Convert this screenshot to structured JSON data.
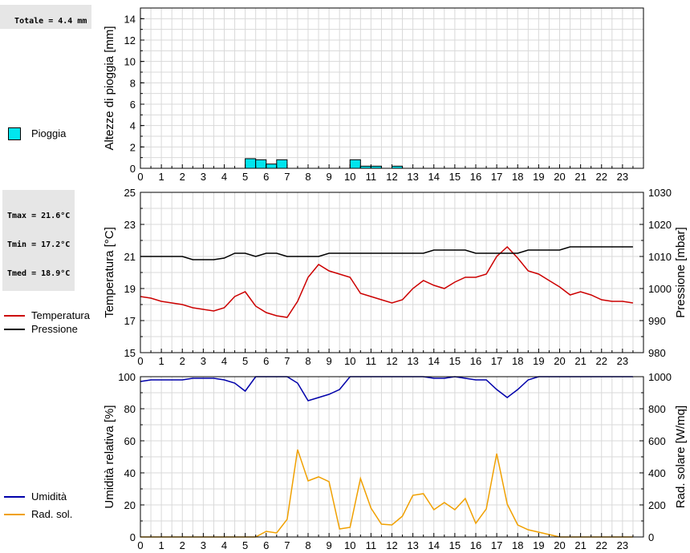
{
  "summaries": {
    "rain_total": "Totale = 4.4 mm",
    "temp_lines": [
      "Tmax = 21.6°C",
      "Tmin = 17.2°C",
      "Tmed = 18.9°C"
    ]
  },
  "legends": {
    "rain": [
      {
        "label": "Pioggia",
        "color": "#00e5ee"
      }
    ],
    "temp": [
      {
        "label": "Temperatura",
        "color": "#cc0000"
      },
      {
        "label": "Pressione",
        "color": "#000000"
      }
    ],
    "hum": [
      {
        "label": "Umidità",
        "color": "#0000aa"
      },
      {
        "label": "Rad. sol.",
        "color": "#f0a000"
      }
    ]
  },
  "chart_data": [
    {
      "type": "bar",
      "ylabel": "Altezze di pioggia [mm]",
      "xlim": [
        0,
        24
      ],
      "ylim": [
        0,
        15
      ],
      "yticks": [
        0,
        2,
        4,
        6,
        8,
        10,
        12,
        14
      ],
      "xticks": [
        0,
        1,
        2,
        3,
        4,
        5,
        6,
        7,
        8,
        9,
        10,
        11,
        12,
        13,
        14,
        15,
        16,
        17,
        18,
        19,
        20,
        21,
        22,
        23
      ],
      "bar_width": 0.5,
      "bars": [
        {
          "x": 5.0,
          "value": 0.9
        },
        {
          "x": 5.5,
          "value": 0.8
        },
        {
          "x": 6.0,
          "value": 0.4
        },
        {
          "x": 6.5,
          "value": 0.8
        },
        {
          "x": 10.0,
          "value": 0.8
        },
        {
          "x": 10.5,
          "value": 0.2
        },
        {
          "x": 11.0,
          "value": 0.2
        },
        {
          "x": 12.0,
          "value": 0.2
        }
      ],
      "color": "#00e5ee",
      "grid": true
    },
    {
      "type": "line",
      "ylabel": "Temperatura [°C]",
      "y2label": "Pressione [mbar]",
      "xlim": [
        0,
        24
      ],
      "ylim": [
        15,
        25
      ],
      "yticks": [
        15,
        17,
        19,
        21,
        23,
        25
      ],
      "y2lim": [
        980,
        1030
      ],
      "y2ticks": [
        980,
        990,
        1000,
        1010,
        1020,
        1030
      ],
      "xticks": [
        0,
        1,
        2,
        3,
        4,
        5,
        6,
        7,
        8,
        9,
        10,
        11,
        12,
        13,
        14,
        15,
        16,
        17,
        18,
        19,
        20,
        21,
        22,
        23
      ],
      "grid": true,
      "series": [
        {
          "name": "Temperatura",
          "axis": "left",
          "color": "#cc0000",
          "x": [
            0,
            0.5,
            1,
            1.5,
            2,
            2.5,
            3,
            3.5,
            4,
            4.5,
            5,
            5.5,
            6,
            6.5,
            7,
            7.5,
            8,
            8.5,
            9,
            9.5,
            10,
            10.5,
            11,
            11.5,
            12,
            12.5,
            13,
            13.5,
            14,
            14.5,
            15,
            15.5,
            16,
            16.5,
            17,
            17.5,
            18,
            18.5,
            19,
            19.5,
            20,
            20.5,
            21,
            21.5,
            22,
            22.5,
            23,
            23.5
          ],
          "y": [
            18.5,
            18.4,
            18.2,
            18.1,
            18.0,
            17.8,
            17.7,
            17.6,
            17.8,
            18.5,
            18.8,
            17.9,
            17.5,
            17.3,
            17.2,
            18.2,
            19.7,
            20.5,
            20.1,
            19.9,
            19.7,
            18.7,
            18.5,
            18.3,
            18.1,
            18.3,
            19.0,
            19.5,
            19.2,
            19.0,
            19.4,
            19.7,
            19.7,
            19.9,
            21.0,
            21.6,
            20.9,
            20.1,
            19.9,
            19.5,
            19.1,
            18.6,
            18.8,
            18.6,
            18.3,
            18.2,
            18.2,
            18.1
          ]
        },
        {
          "name": "Pressione",
          "axis": "right",
          "color": "#000000",
          "x": [
            0,
            0.5,
            1,
            1.5,
            2,
            2.5,
            3,
            3.5,
            4,
            4.5,
            5,
            5.5,
            6,
            6.5,
            7,
            7.5,
            8,
            8.5,
            9,
            9.5,
            10,
            10.5,
            11,
            11.5,
            12,
            12.5,
            13,
            13.5,
            14,
            14.5,
            15,
            15.5,
            16,
            16.5,
            17,
            17.5,
            18,
            18.5,
            19,
            19.5,
            20,
            20.5,
            21,
            21.5,
            22,
            22.5,
            23,
            23.5
          ],
          "y": [
            1010,
            1010,
            1010,
            1010,
            1010,
            1009,
            1009,
            1009,
            1009.5,
            1011,
            1011,
            1010,
            1011,
            1011,
            1010,
            1010,
            1010,
            1010,
            1011,
            1011,
            1011,
            1011,
            1011,
            1011,
            1011,
            1011,
            1011,
            1011,
            1012,
            1012,
            1012,
            1012,
            1011,
            1011,
            1011,
            1011,
            1011,
            1012,
            1012,
            1012,
            1012,
            1013,
            1013,
            1013,
            1013,
            1013,
            1013,
            1013
          ]
        }
      ]
    },
    {
      "type": "line",
      "ylabel": "Umidità relativa [%]",
      "y2label": "Rad. solare [W/mq]",
      "xlim": [
        0,
        24
      ],
      "ylim": [
        0,
        100
      ],
      "yticks": [
        0,
        20,
        40,
        60,
        80,
        100
      ],
      "y2lim": [
        0,
        1000
      ],
      "y2ticks": [
        0,
        200,
        400,
        600,
        800,
        1000
      ],
      "xticks": [
        0,
        1,
        2,
        3,
        4,
        5,
        6,
        7,
        8,
        9,
        10,
        11,
        12,
        13,
        14,
        15,
        16,
        17,
        18,
        19,
        20,
        21,
        22,
        23
      ],
      "grid": true,
      "series": [
        {
          "name": "Umidità",
          "axis": "left",
          "color": "#0000aa",
          "x": [
            0,
            0.5,
            1,
            1.5,
            2,
            2.5,
            3,
            3.5,
            4,
            4.5,
            5,
            5.5,
            6,
            6.5,
            7,
            7.5,
            8,
            8.5,
            9,
            9.5,
            10,
            10.5,
            11,
            11.5,
            12,
            12.5,
            13,
            13.5,
            14,
            14.5,
            15,
            15.5,
            16,
            16.5,
            17,
            17.5,
            18,
            18.5,
            19,
            19.5,
            20,
            20.5,
            21,
            21.5,
            22,
            22.5,
            23,
            23.5
          ],
          "y": [
            97,
            98,
            98,
            98,
            98,
            99,
            99,
            99,
            98,
            96,
            91,
            100,
            100,
            100,
            100,
            96,
            85,
            87,
            89,
            92,
            100,
            100,
            100,
            100,
            100,
            100,
            100,
            100,
            99,
            99,
            100,
            99,
            98,
            98,
            92,
            87,
            92,
            98,
            100,
            100,
            100,
            100,
            100,
            100,
            100,
            100,
            100,
            100
          ]
        },
        {
          "name": "Rad. sol.",
          "axis": "right",
          "color": "#f0a000",
          "x": [
            0,
            0.5,
            1,
            1.5,
            2,
            2.5,
            3,
            3.5,
            4,
            4.5,
            5,
            5.5,
            6,
            6.5,
            7,
            7.5,
            8,
            8.5,
            9,
            9.5,
            10,
            10.5,
            11,
            11.5,
            12,
            12.5,
            13,
            13.5,
            14,
            14.5,
            15,
            15.5,
            16,
            16.5,
            17,
            17.5,
            18,
            18.5,
            19,
            19.5,
            20,
            20.5,
            21,
            21.5,
            22,
            22.5,
            23,
            23.5
          ],
          "y": [
            0,
            0,
            0,
            0,
            0,
            0,
            0,
            0,
            0,
            0,
            0,
            0,
            35,
            25,
            110,
            545,
            350,
            375,
            345,
            50,
            60,
            365,
            180,
            80,
            75,
            130,
            260,
            270,
            170,
            215,
            170,
            240,
            85,
            175,
            520,
            205,
            75,
            45,
            30,
            15,
            0,
            0,
            0,
            0,
            0,
            0,
            0,
            0
          ]
        }
      ]
    }
  ]
}
